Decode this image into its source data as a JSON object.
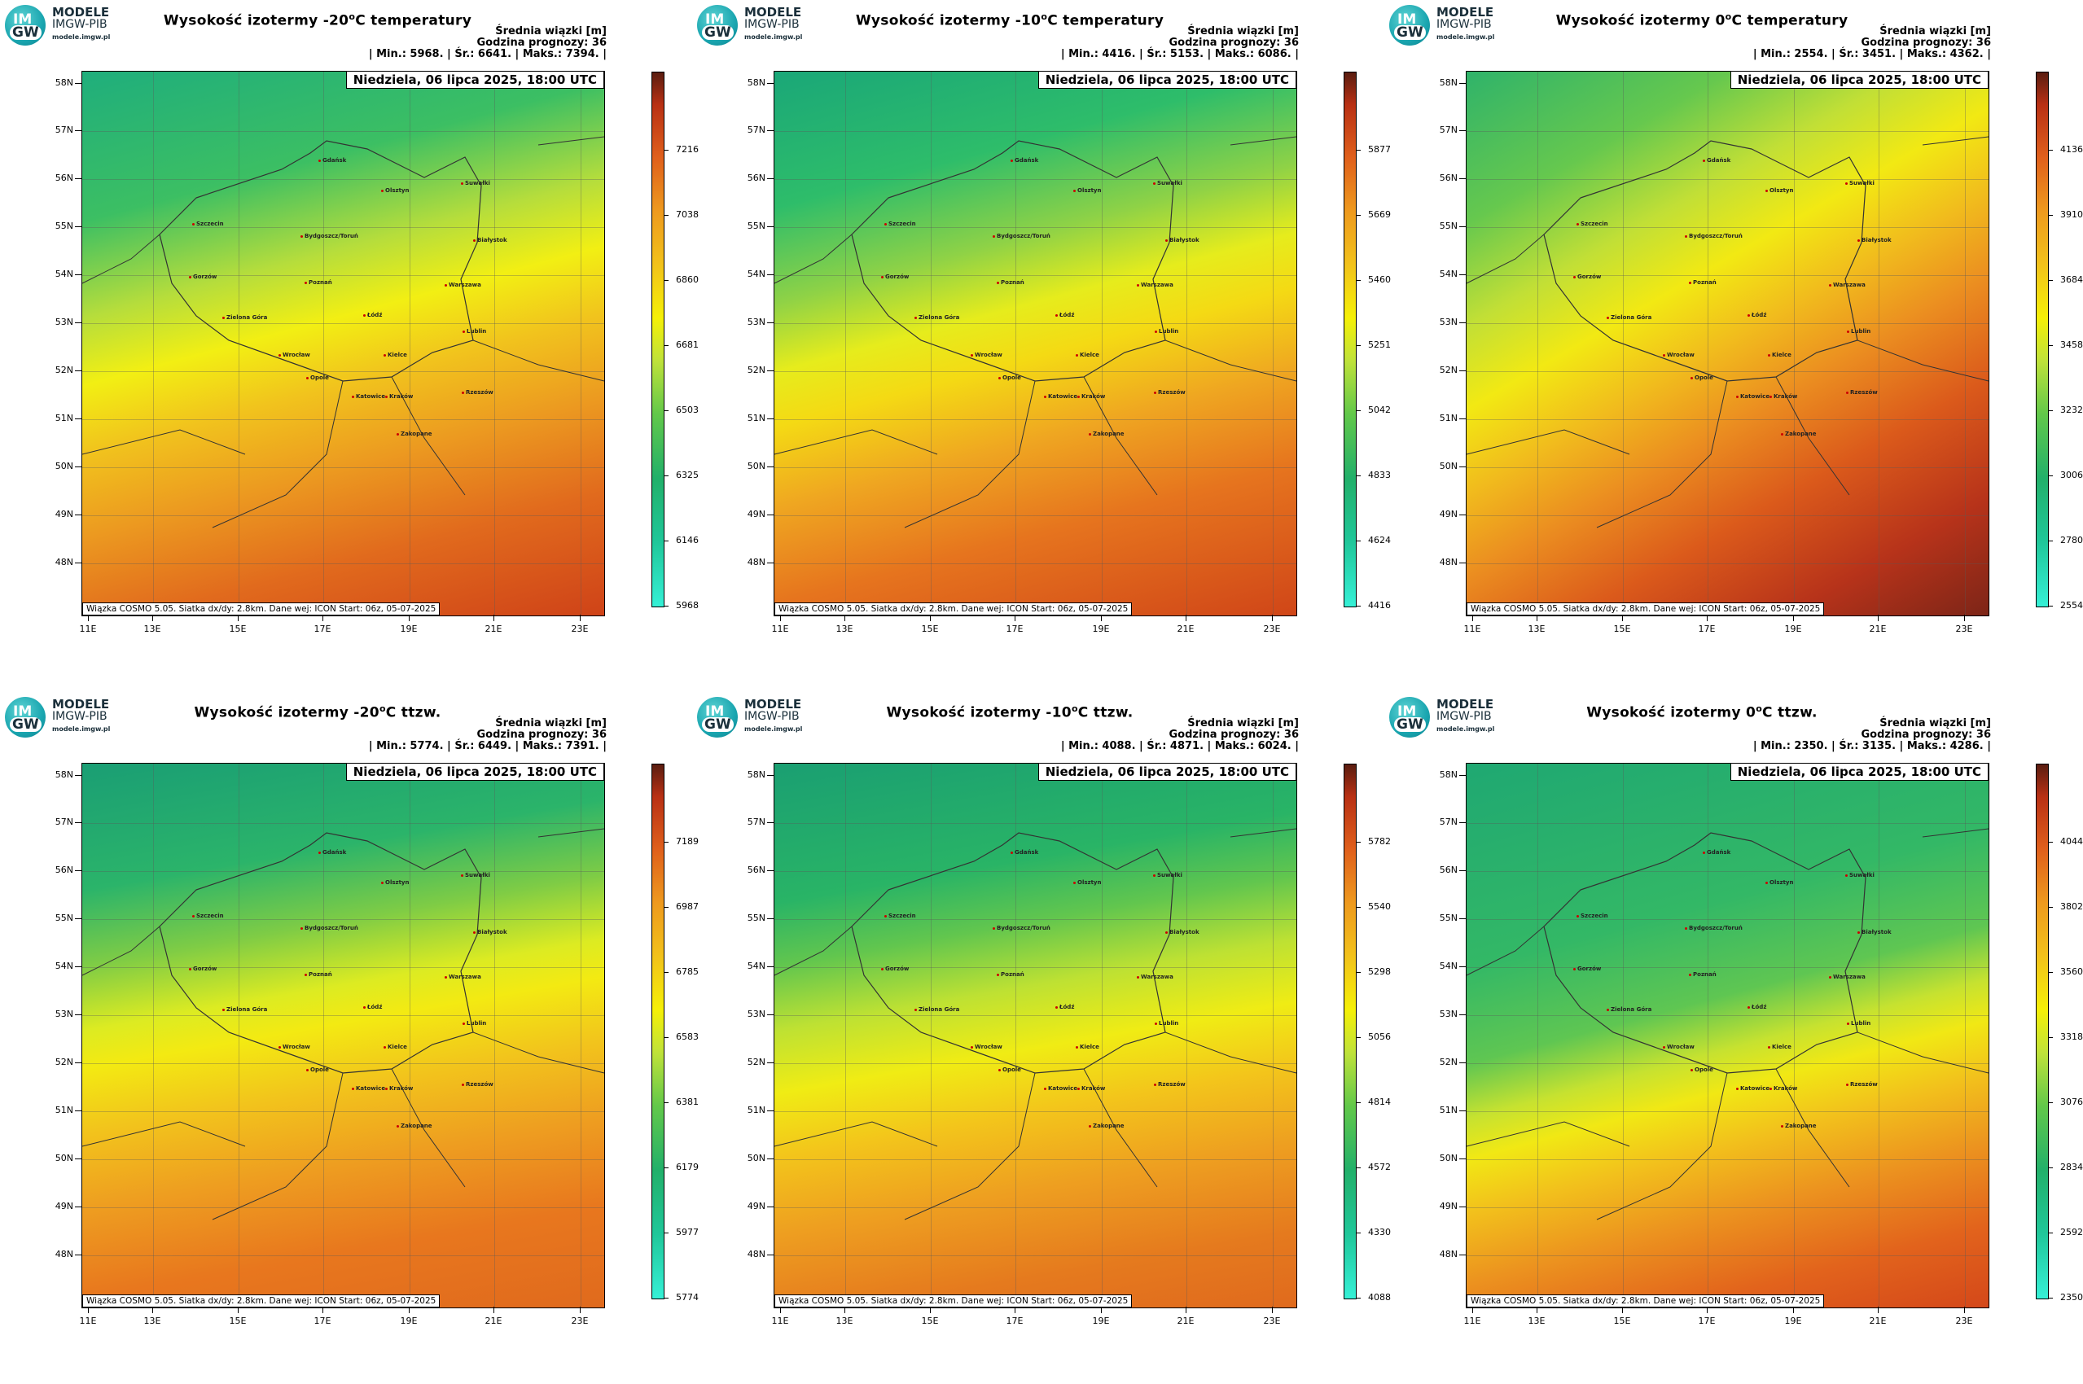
{
  "logo": {
    "line1": "MODELE",
    "line2": "IMGW-PIB",
    "line3": "modele.imgw.pl",
    "mark_top": "IM",
    "mark_bottom": "GW"
  },
  "common": {
    "stats_header": "Średnia wiązki [m]",
    "forecast_hour": "Godzina prognozy: 36",
    "date": "Niedziela, 06 lipca 2025, 18:00 UTC",
    "footer": "Wiązka COSMO 5.05. Siatka dx/dy: 2.8km. Dane wej: ICON Start: 06z, 05-07-2025",
    "lat_labels": [
      "58N",
      "57N",
      "56N",
      "55N",
      "54N",
      "53N",
      "52N",
      "51N",
      "50N",
      "49N",
      "48N"
    ],
    "lon_labels": [
      "11E",
      "13E",
      "15E",
      "17E",
      "19E",
      "21E",
      "23E"
    ],
    "cities": [
      "Gdańsk",
      "Olsztyn",
      "Suwałki",
      "Szczecin",
      "Bydgoszcz/Toruń",
      "Białystok",
      "Gorzów",
      "Poznań",
      "Warszawa",
      "Zielona Góra",
      "Łódź",
      "Lublin",
      "Wrocław",
      "Kielce",
      "Opole",
      "Katowice",
      "Kraków",
      "Rzeszów",
      "Zakopane"
    ]
  },
  "panels": [
    {
      "title_pre": "Wysokość izotermy -20",
      "title_post": "C temperatury",
      "stats": "| Min.:   5968. | Śr.:   6641. | Maks.:   7394. |",
      "colorbar_ticks": [
        "7216",
        "7038",
        "6860",
        "6681",
        "6503",
        "6325",
        "6146",
        "5968"
      ],
      "map_gradient": "linear-gradient(165deg, #1fae7c 0%, #3cbf63 22%, #b5dd3c 36%, #f2ef13 46%, #f1c31d 56%, #ec9a20 68%, #e16a1d 82%, #cf4318 100%)"
    },
    {
      "title_pre": "Wysokość izotermy -10",
      "title_post": "C temperatury",
      "stats": "| Min.:   4416. | Śr.:   5153. | Maks.:   6086. |",
      "colorbar_ticks": [
        "5877",
        "5669",
        "5460",
        "5251",
        "5042",
        "4833",
        "4624",
        "4416"
      ],
      "map_gradient": "linear-gradient(165deg, #1aa778 0%, #2ebd6a 20%, #8fd246 34%, #e6ec1c 44%, #f4da14 52%, #efa621 64%, #e6741e 78%, #d04618 100%)"
    },
    {
      "title_pre": "Wysokość izotermy 0",
      "title_post": "C temperatury",
      "stats": "| Min.:   2554. | Śr.:   3451. | Maks.:   4362. |",
      "colorbar_ticks": [
        "4136",
        "3910",
        "3684",
        "3458",
        "3232",
        "3006",
        "2780",
        "2554"
      ],
      "map_gradient": "linear-gradient(150deg, #2fb36a 0%, #66c84e 18%, #c1df36 30%, #f2e913 40%, #f1bb1d 50%, #eb8d20 60%, #db5a1b 72%, #b7331a 86%, #7d2517 100%)"
    },
    {
      "title_pre": "Wysokość izotermy -20",
      "title_post": "C ttzw.",
      "stats": "| Min.:   5774. | Śr.:   6449. | Maks.:   7391. |",
      "colorbar_ticks": [
        "7189",
        "6987",
        "6785",
        "6583",
        "6381",
        "6179",
        "5977",
        "5774"
      ],
      "map_gradient": "linear-gradient(170deg, #1a9e74 0%, #2bb46a 20%, #7fcc45 32%, #dceb22 42%, #f3ea12 48%, #f2c41c 58%, #ee9e20 70%, #e8771e 84%, #e06a1d 100%)"
    },
    {
      "title_pre": "Wysokość izotermy -10",
      "title_post": "C ttzw.",
      "stats": "| Min.:   4088. | Śr.:   4871. | Maks.:   6024. |",
      "colorbar_ticks": [
        "5782",
        "5540",
        "5298",
        "5056",
        "4814",
        "4572",
        "4330",
        "4088"
      ],
      "map_gradient": "linear-gradient(170deg, #1a9f72 0%, #29b466 22%, #62c64e 32%, #bde133 42%, #f0ec14 52%, #f3c51b 62%, #ee9f20 74%, #e57a1e 88%, #e06a1d 100%)"
    },
    {
      "title_pre": "Wysokość izotermy 0",
      "title_post": "C ttzw.",
      "stats": "| Min.:   2350. | Śr.:   3135. | Maks.:   4286. |",
      "colorbar_ticks": [
        "4044",
        "3802",
        "3560",
        "3318",
        "3076",
        "2834",
        "2592",
        "2350"
      ],
      "map_gradient": "linear-gradient(165deg, #1fa872 0%, #33b866 30%, #5fc652 44%, #c6e230 52%, #f1e814 58%, #f2c01c 66%, #ec931f 76%, #e2631c 88%, #d4481a 100%)"
    }
  ]
}
